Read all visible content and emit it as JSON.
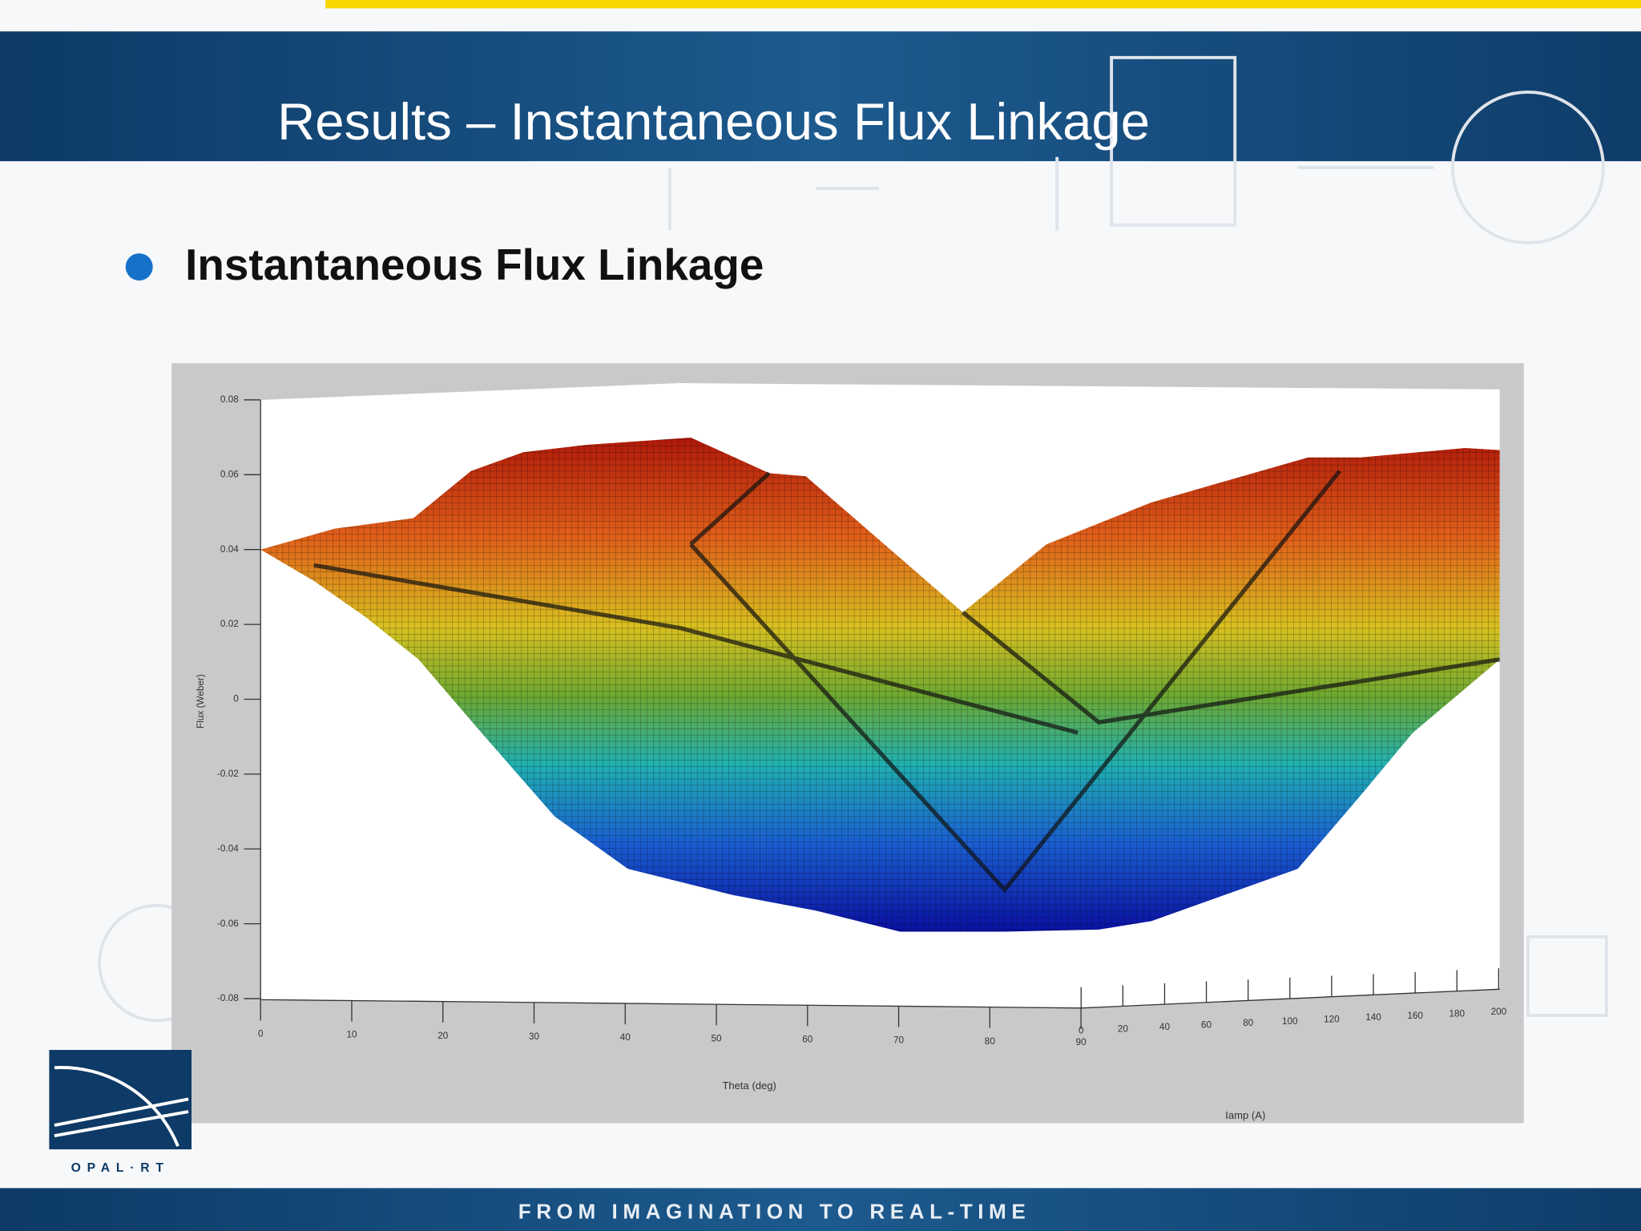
{
  "header": {
    "title": "Results – Instantaneous Flux Linkage"
  },
  "bullet": {
    "text": "Instantaneous Flux Linkage"
  },
  "figure": {
    "y_label": "Flux (Weber)",
    "x_label": "Theta (deg)",
    "z_label": "Iamp (A)",
    "yticks": [
      0.08,
      0.06,
      0.04,
      0.02,
      0,
      -0.02,
      -0.04,
      -0.06,
      -0.08
    ],
    "xticks": [
      0,
      10,
      20,
      30,
      40,
      50,
      60,
      70,
      80,
      90
    ],
    "zticks": [
      0,
      20,
      40,
      60,
      80,
      100,
      120,
      140,
      160,
      180,
      200
    ]
  },
  "logo": {
    "text": "OPAL·RT"
  },
  "footer": {
    "tagline": "FROM IMAGINATION TO REAL-TIME"
  }
}
